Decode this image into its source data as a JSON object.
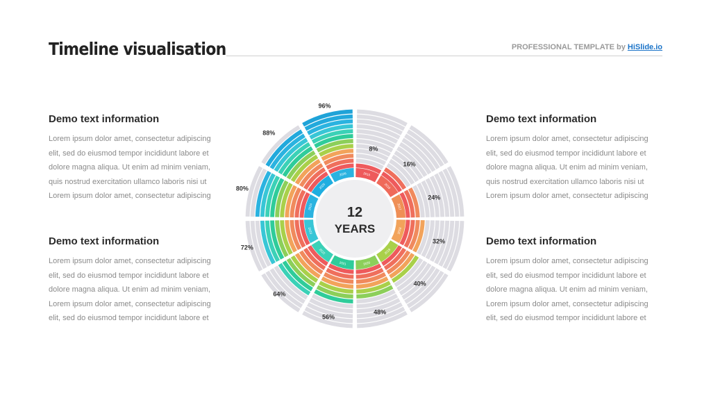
{
  "header": {
    "title": "Timeline visualisation",
    "brand_prefix": "PROFESSIONAL TEMPLATE by ",
    "brand_link": "HiSlide.io"
  },
  "blocks": [
    {
      "heading": "Demo text information",
      "lines": [
        "Lorem ipsum dolor amet, consectetur adipiscing",
        "elit, sed do eiusmod tempor incididunt  labore et",
        "dolore magna aliqua. Ut enim ad minim veniam,",
        "quis nostrud exercitation ullamco laboris nisi ut",
        "Lorem ipsum dolor amet, consectetur adipiscing"
      ]
    },
    {
      "heading": "Demo text information",
      "lines": [
        "Lorem ipsum dolor amet, consectetur adipiscing",
        "elit, sed do eiusmod tempor incididunt  labore et",
        "dolore magna aliqua. Ut enim ad minim veniam,",
        "Lorem ipsum dolor amet, consectetur adipiscing",
        "elit, sed do eiusmod tempor incididunt  labore et"
      ]
    },
    {
      "heading": "Demo text information",
      "lines": [
        "Lorem ipsum dolor amet, consectetur adipiscing",
        "elit, sed do eiusmod tempor incididunt  labore et",
        "dolore magna aliqua. Ut enim ad minim veniam,",
        "quis nostrud exercitation ullamco laboris nisi ut",
        "Lorem ipsum dolor amet, consectetur adipiscing"
      ]
    },
    {
      "heading": "Demo text information",
      "lines": [
        "Lorem ipsum dolor amet, consectetur adipiscing",
        "elit, sed do eiusmod tempor incididunt  labore et",
        "dolore magna aliqua. Ut enim ad minim veniam,",
        "Lorem ipsum dolor amet, consectetur adipiscing",
        "elit, sed do eiusmod tempor incididunt  labore et"
      ]
    }
  ],
  "wheel": {
    "center_number": "12",
    "center_label": "YEARS",
    "years": [
      "2015",
      "2016",
      "2017",
      "2018",
      "2019",
      "2020",
      "2021",
      "2022",
      "2023",
      "2024",
      "2025",
      "2026"
    ],
    "percents": [
      "8%",
      "16%",
      "24%",
      "32%",
      "40%",
      "48%",
      "56%",
      "64%",
      "72%",
      "80%",
      "88%",
      "96%"
    ],
    "progress": [
      8,
      16,
      24,
      32,
      40,
      48,
      56,
      64,
      72,
      80,
      88,
      96
    ],
    "colors": {
      "ring": [
        "#ee5a5c",
        "#f08a5d",
        "#f0a04b",
        "#a9d04a",
        "#8ccf5a",
        "#2fcc9a",
        "#3bd1b7",
        "#38c6d6",
        "#2bb3e0",
        "#ffffff",
        "#d9d8de"
      ],
      "year_colors": [
        "#ee5a5c",
        "#ef6a5a",
        "#ef8f56",
        "#f2a35b",
        "#a9d04a",
        "#8ccf5a",
        "#2fcc9a",
        "#3bd1b7",
        "#38c6d6",
        "#2bb3e0",
        "#1faee0",
        "#2bb3e0"
      ],
      "track": "#dddce2",
      "center": "#efeff1"
    }
  }
}
